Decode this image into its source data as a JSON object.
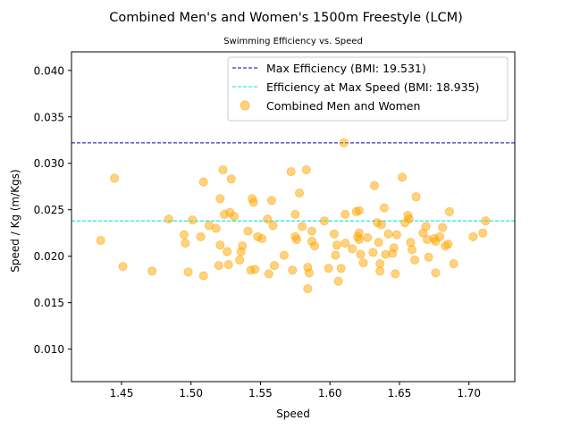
{
  "chart_data": {
    "type": "scatter",
    "title": "Combined Men's and Women's 1500m Freestyle (LCM)",
    "subtitle": "Swimming Efficiency vs. Speed",
    "xlabel": "Speed",
    "ylabel": "Speed / Kg (m/Kgs)",
    "xlim": [
      1.414,
      1.733
    ],
    "ylim": [
      0.0065,
      0.042
    ],
    "x_ticks": [
      1.45,
      1.5,
      1.55,
      1.6,
      1.65,
      1.7
    ],
    "x_tick_labels": [
      "1.45",
      "1.50",
      "1.55",
      "1.60",
      "1.65",
      "1.70"
    ],
    "y_ticks": [
      0.01,
      0.015,
      0.02,
      0.025,
      0.03,
      0.035,
      0.04
    ],
    "y_tick_labels": [
      "0.010",
      "0.015",
      "0.020",
      "0.025",
      "0.030",
      "0.035",
      "0.040"
    ],
    "grid": false,
    "legend_position": "top-right",
    "hlines": [
      {
        "name": "Max Efficiency (BMI: 19.531)",
        "y": 0.0322,
        "color": "#0000cc",
        "style": "dashed"
      },
      {
        "name": "Efficiency at Max Speed (BMI: 18.935)",
        "y": 0.0238,
        "color": "#00e5e5",
        "style": "dashed"
      }
    ],
    "series": [
      {
        "name": "Combined Men and Women",
        "color": "#ffa500",
        "points": [
          [
            1.435,
            0.0217
          ],
          [
            1.445,
            0.0284
          ],
          [
            1.451,
            0.0189
          ],
          [
            1.472,
            0.0184
          ],
          [
            1.484,
            0.024
          ],
          [
            1.495,
            0.0223
          ],
          [
            1.496,
            0.0214
          ],
          [
            1.498,
            0.0183
          ],
          [
            1.501,
            0.0239
          ],
          [
            1.507,
            0.0221
          ],
          [
            1.509,
            0.028
          ],
          [
            1.509,
            0.0179
          ],
          [
            1.513,
            0.0233
          ],
          [
            1.518,
            0.023
          ],
          [
            1.52,
            0.019
          ],
          [
            1.521,
            0.0212
          ],
          [
            1.521,
            0.0262
          ],
          [
            1.523,
            0.0293
          ],
          [
            1.524,
            0.0245
          ],
          [
            1.526,
            0.0205
          ],
          [
            1.527,
            0.0191
          ],
          [
            1.528,
            0.0247
          ],
          [
            1.529,
            0.0283
          ],
          [
            1.531,
            0.0243
          ],
          [
            1.535,
            0.0196
          ],
          [
            1.536,
            0.0205
          ],
          [
            1.537,
            0.0211
          ],
          [
            1.541,
            0.0227
          ],
          [
            1.543,
            0.0185
          ],
          [
            1.544,
            0.0262
          ],
          [
            1.545,
            0.0258
          ],
          [
            1.546,
            0.0186
          ],
          [
            1.548,
            0.0221
          ],
          [
            1.551,
            0.0219
          ],
          [
            1.555,
            0.024
          ],
          [
            1.556,
            0.0181
          ],
          [
            1.558,
            0.026
          ],
          [
            1.559,
            0.0233
          ],
          [
            1.56,
            0.019
          ],
          [
            1.567,
            0.0201
          ],
          [
            1.572,
            0.0291
          ],
          [
            1.573,
            0.0185
          ],
          [
            1.575,
            0.0245
          ],
          [
            1.575,
            0.0221
          ],
          [
            1.576,
            0.0218
          ],
          [
            1.578,
            0.0268
          ],
          [
            1.58,
            0.0232
          ],
          [
            1.583,
            0.0293
          ],
          [
            1.584,
            0.0188
          ],
          [
            1.584,
            0.0165
          ],
          [
            1.585,
            0.0182
          ],
          [
            1.587,
            0.0227
          ],
          [
            1.587,
            0.0216
          ],
          [
            1.589,
            0.0211
          ],
          [
            1.596,
            0.0238
          ],
          [
            1.599,
            0.0187
          ],
          [
            1.603,
            0.0224
          ],
          [
            1.604,
            0.0201
          ],
          [
            1.605,
            0.0212
          ],
          [
            1.606,
            0.0173
          ],
          [
            1.608,
            0.0187
          ],
          [
            1.61,
            0.0322
          ],
          [
            1.611,
            0.0245
          ],
          [
            1.611,
            0.0214
          ],
          [
            1.616,
            0.0208
          ],
          [
            1.619,
            0.0248
          ],
          [
            1.62,
            0.0221
          ],
          [
            1.621,
            0.0249
          ],
          [
            1.621,
            0.0225
          ],
          [
            1.621,
            0.0218
          ],
          [
            1.622,
            0.0202
          ],
          [
            1.624,
            0.0193
          ],
          [
            1.627,
            0.022
          ],
          [
            1.631,
            0.0204
          ],
          [
            1.632,
            0.0276
          ],
          [
            1.634,
            0.0236
          ],
          [
            1.635,
            0.0215
          ],
          [
            1.636,
            0.0184
          ],
          [
            1.636,
            0.0192
          ],
          [
            1.637,
            0.0234
          ],
          [
            1.639,
            0.0252
          ],
          [
            1.64,
            0.0202
          ],
          [
            1.642,
            0.0224
          ],
          [
            1.645,
            0.0203
          ],
          [
            1.646,
            0.0209
          ],
          [
            1.647,
            0.0181
          ],
          [
            1.648,
            0.0223
          ],
          [
            1.652,
            0.0285
          ],
          [
            1.654,
            0.0236
          ],
          [
            1.656,
            0.0244
          ],
          [
            1.657,
            0.024
          ],
          [
            1.658,
            0.0215
          ],
          [
            1.659,
            0.0207
          ],
          [
            1.661,
            0.0196
          ],
          [
            1.662,
            0.0264
          ],
          [
            1.667,
            0.0225
          ],
          [
            1.669,
            0.0232
          ],
          [
            1.67,
            0.0218
          ],
          [
            1.671,
            0.0199
          ],
          [
            1.675,
            0.0219
          ],
          [
            1.676,
            0.0216
          ],
          [
            1.676,
            0.0182
          ],
          [
            1.679,
            0.0221
          ],
          [
            1.681,
            0.0231
          ],
          [
            1.683,
            0.0211
          ],
          [
            1.685,
            0.0213
          ],
          [
            1.686,
            0.0248
          ],
          [
            1.689,
            0.0192
          ],
          [
            1.703,
            0.0221
          ],
          [
            1.71,
            0.0225
          ],
          [
            1.712,
            0.0238
          ]
        ]
      }
    ]
  }
}
